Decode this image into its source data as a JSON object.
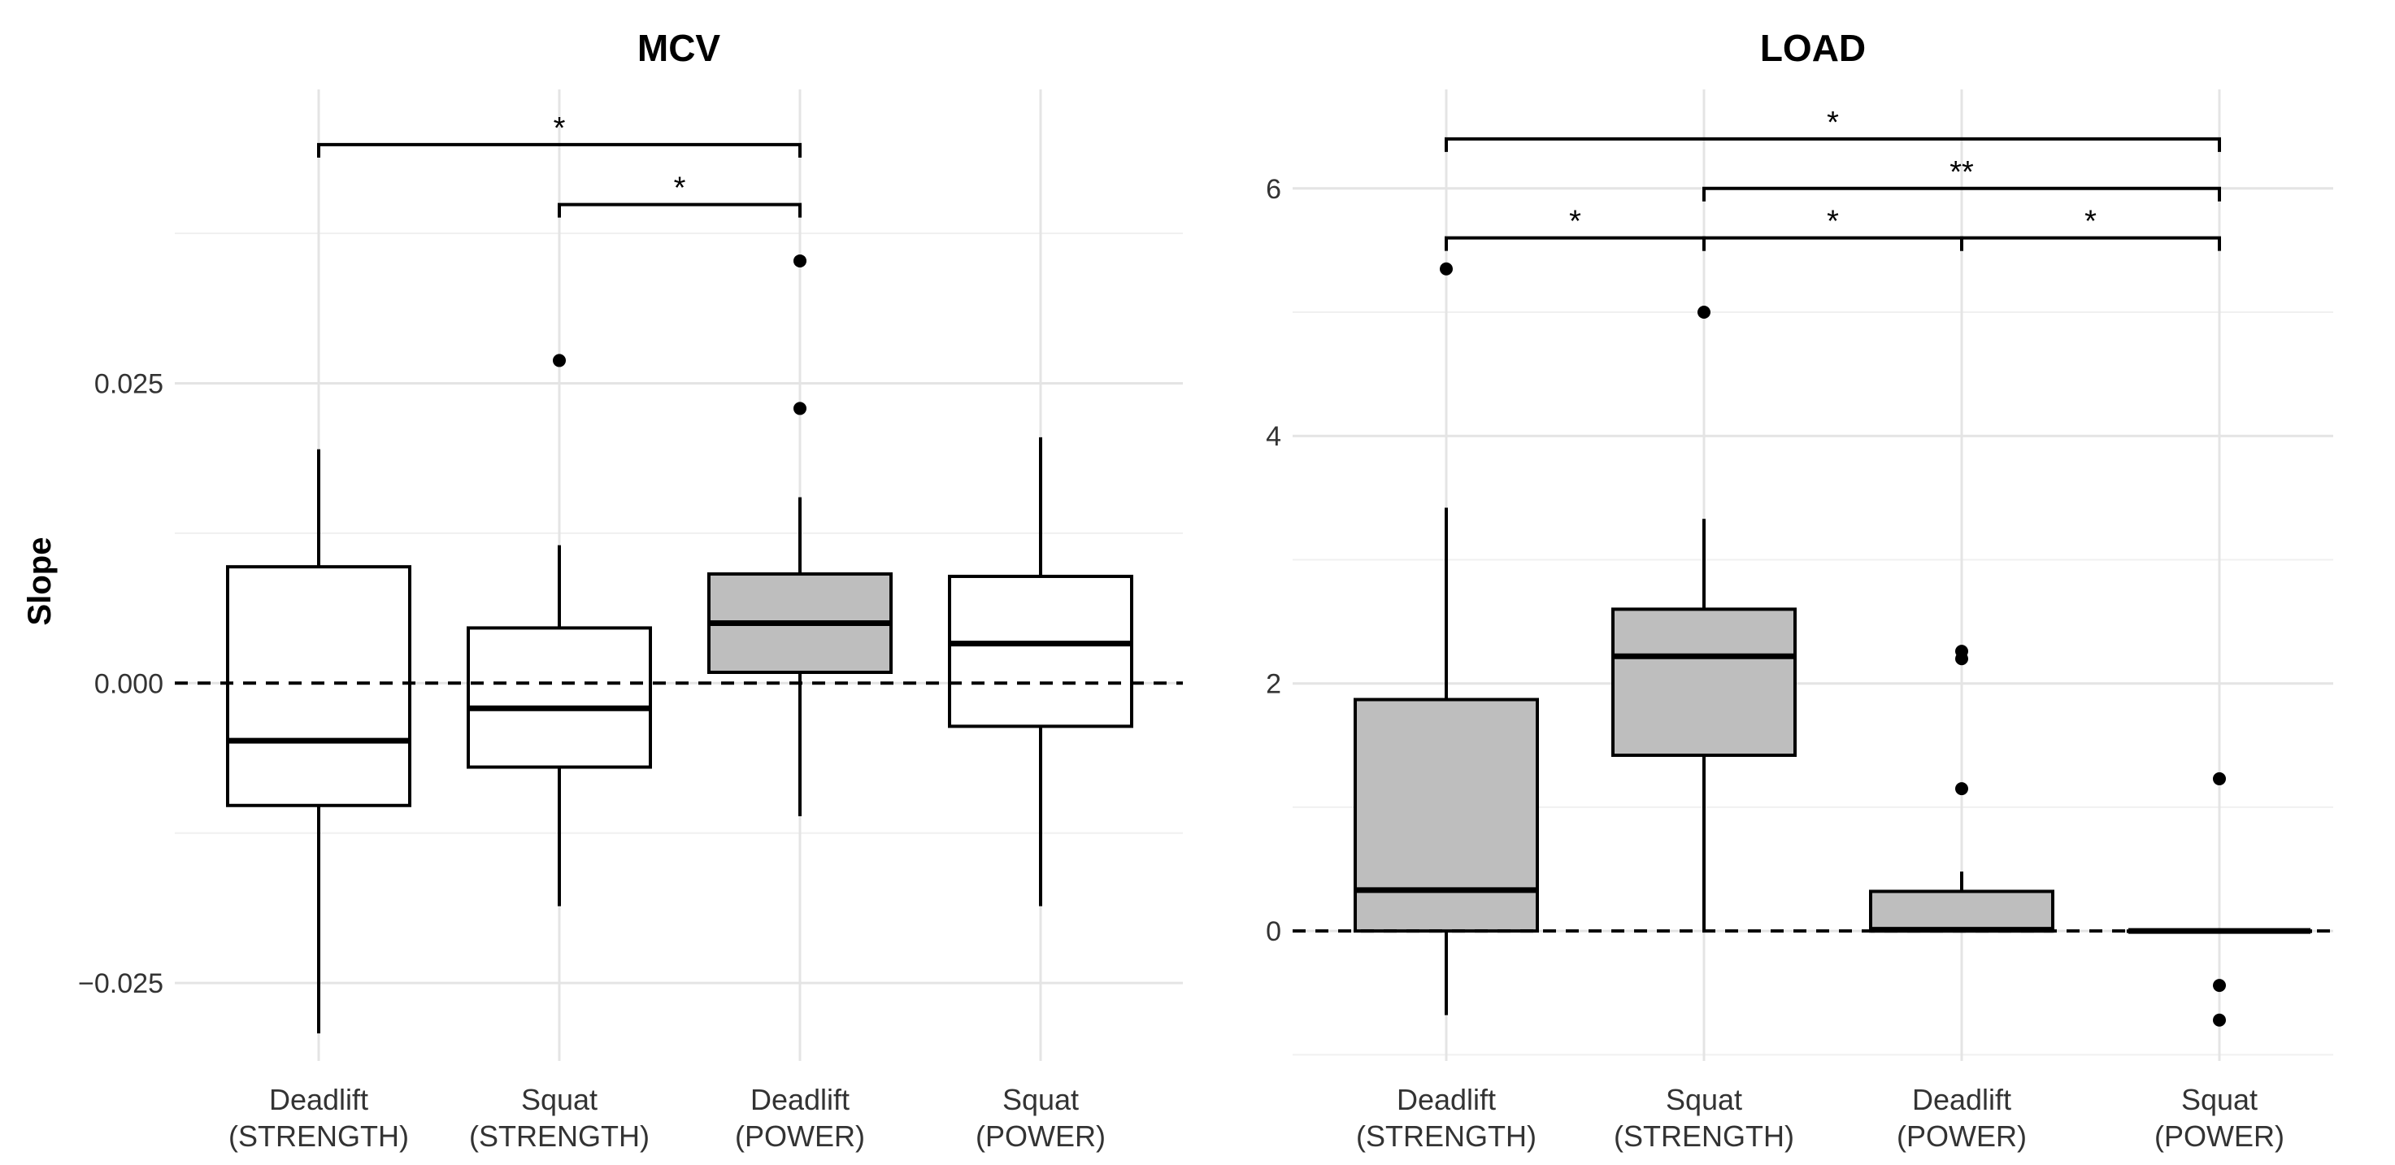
{
  "chart_data": {
    "type": "boxplot",
    "ylabel": "Slope",
    "categories": [
      {
        "line1": "Deadlift",
        "line2": "(STRENGTH)"
      },
      {
        "line1": "Squat",
        "line2": "(STRENGTH)"
      },
      {
        "line1": "Deadlift",
        "line2": "(POWER)"
      },
      {
        "line1": "Squat",
        "line2": "(POWER)"
      }
    ],
    "fill_colors": {
      "white": "#ffffff",
      "gray": "#bebebe"
    },
    "reference_line": {
      "y": 0,
      "style": "dashed"
    },
    "grid": true,
    "panels": [
      {
        "title": "MCV",
        "ylim": [
          -0.0315,
          0.0495
        ],
        "yticks": [
          -0.025,
          0.0,
          0.025
        ],
        "ytick_labels": [
          "−0.025",
          "0.000",
          "0.025"
        ],
        "minor_yticks": [
          -0.0125,
          0.0125,
          0.0375
        ],
        "boxes": [
          {
            "q1": -0.0102,
            "median": -0.0048,
            "q3": 0.0097,
            "whisker_low": -0.0292,
            "whisker_high": 0.0195,
            "outliers": [],
            "fill": "#ffffff"
          },
          {
            "q1": -0.007,
            "median": -0.0021,
            "q3": 0.0046,
            "whisker_low": -0.0186,
            "whisker_high": 0.0115,
            "outliers": [
              0.0269
            ],
            "fill": "#ffffff"
          },
          {
            "q1": 0.0009,
            "median": 0.005,
            "q3": 0.0091,
            "whisker_low": -0.0111,
            "whisker_high": 0.0155,
            "outliers": [
              0.0352,
              0.0229
            ],
            "fill": "#bebebe"
          },
          {
            "q1": -0.0036,
            "median": 0.0033,
            "q3": 0.0089,
            "whisker_low": -0.0186,
            "whisker_high": 0.0205,
            "outliers": [],
            "fill": "#ffffff"
          }
        ],
        "significance": [
          {
            "from": 0,
            "to": 2,
            "y": 0.0449,
            "label": "*"
          },
          {
            "from": 1,
            "to": 2,
            "y": 0.0399,
            "label": "*"
          }
        ]
      },
      {
        "title": "LOAD",
        "ylim": [
          -1.05,
          6.8
        ],
        "yticks": [
          0,
          2,
          4,
          6
        ],
        "ytick_labels": [
          "0",
          "2",
          "4",
          "6"
        ],
        "minor_yticks": [
          -1,
          1,
          3,
          5
        ],
        "boxes": [
          {
            "q1": 0.0,
            "median": 0.33,
            "q3": 1.87,
            "whisker_low": -0.68,
            "whisker_high": 3.42,
            "outliers": [
              5.35
            ],
            "fill": "#bebebe"
          },
          {
            "q1": 1.42,
            "median": 2.22,
            "q3": 2.6,
            "whisker_low": 0.0,
            "whisker_high": 3.33,
            "outliers": [
              5.0
            ],
            "fill": "#bebebe"
          },
          {
            "q1": 0.0,
            "median": 0.01,
            "q3": 0.32,
            "whisker_low": 0.0,
            "whisker_high": 0.48,
            "outliers": [
              2.26,
              2.2,
              1.15
            ],
            "fill": "#bebebe"
          },
          {
            "q1": 0.0,
            "median": 0.0,
            "q3": 0.0,
            "whisker_low": 0.0,
            "whisker_high": 0.0,
            "outliers": [
              1.23,
              -0.44,
              -0.72
            ],
            "fill": "#bebebe"
          }
        ],
        "significance": [
          {
            "from": 0,
            "to": 3,
            "y": 6.4,
            "label": "*"
          },
          {
            "from": 1,
            "to": 3,
            "y": 6.0,
            "label": "**"
          },
          {
            "from": 0,
            "to": 1,
            "y": 5.6,
            "label": "*"
          },
          {
            "from": 1,
            "to": 2,
            "y": 5.6,
            "label": "*"
          },
          {
            "from": 2,
            "to": 3,
            "y": 5.6,
            "label": "*"
          }
        ]
      }
    ]
  }
}
